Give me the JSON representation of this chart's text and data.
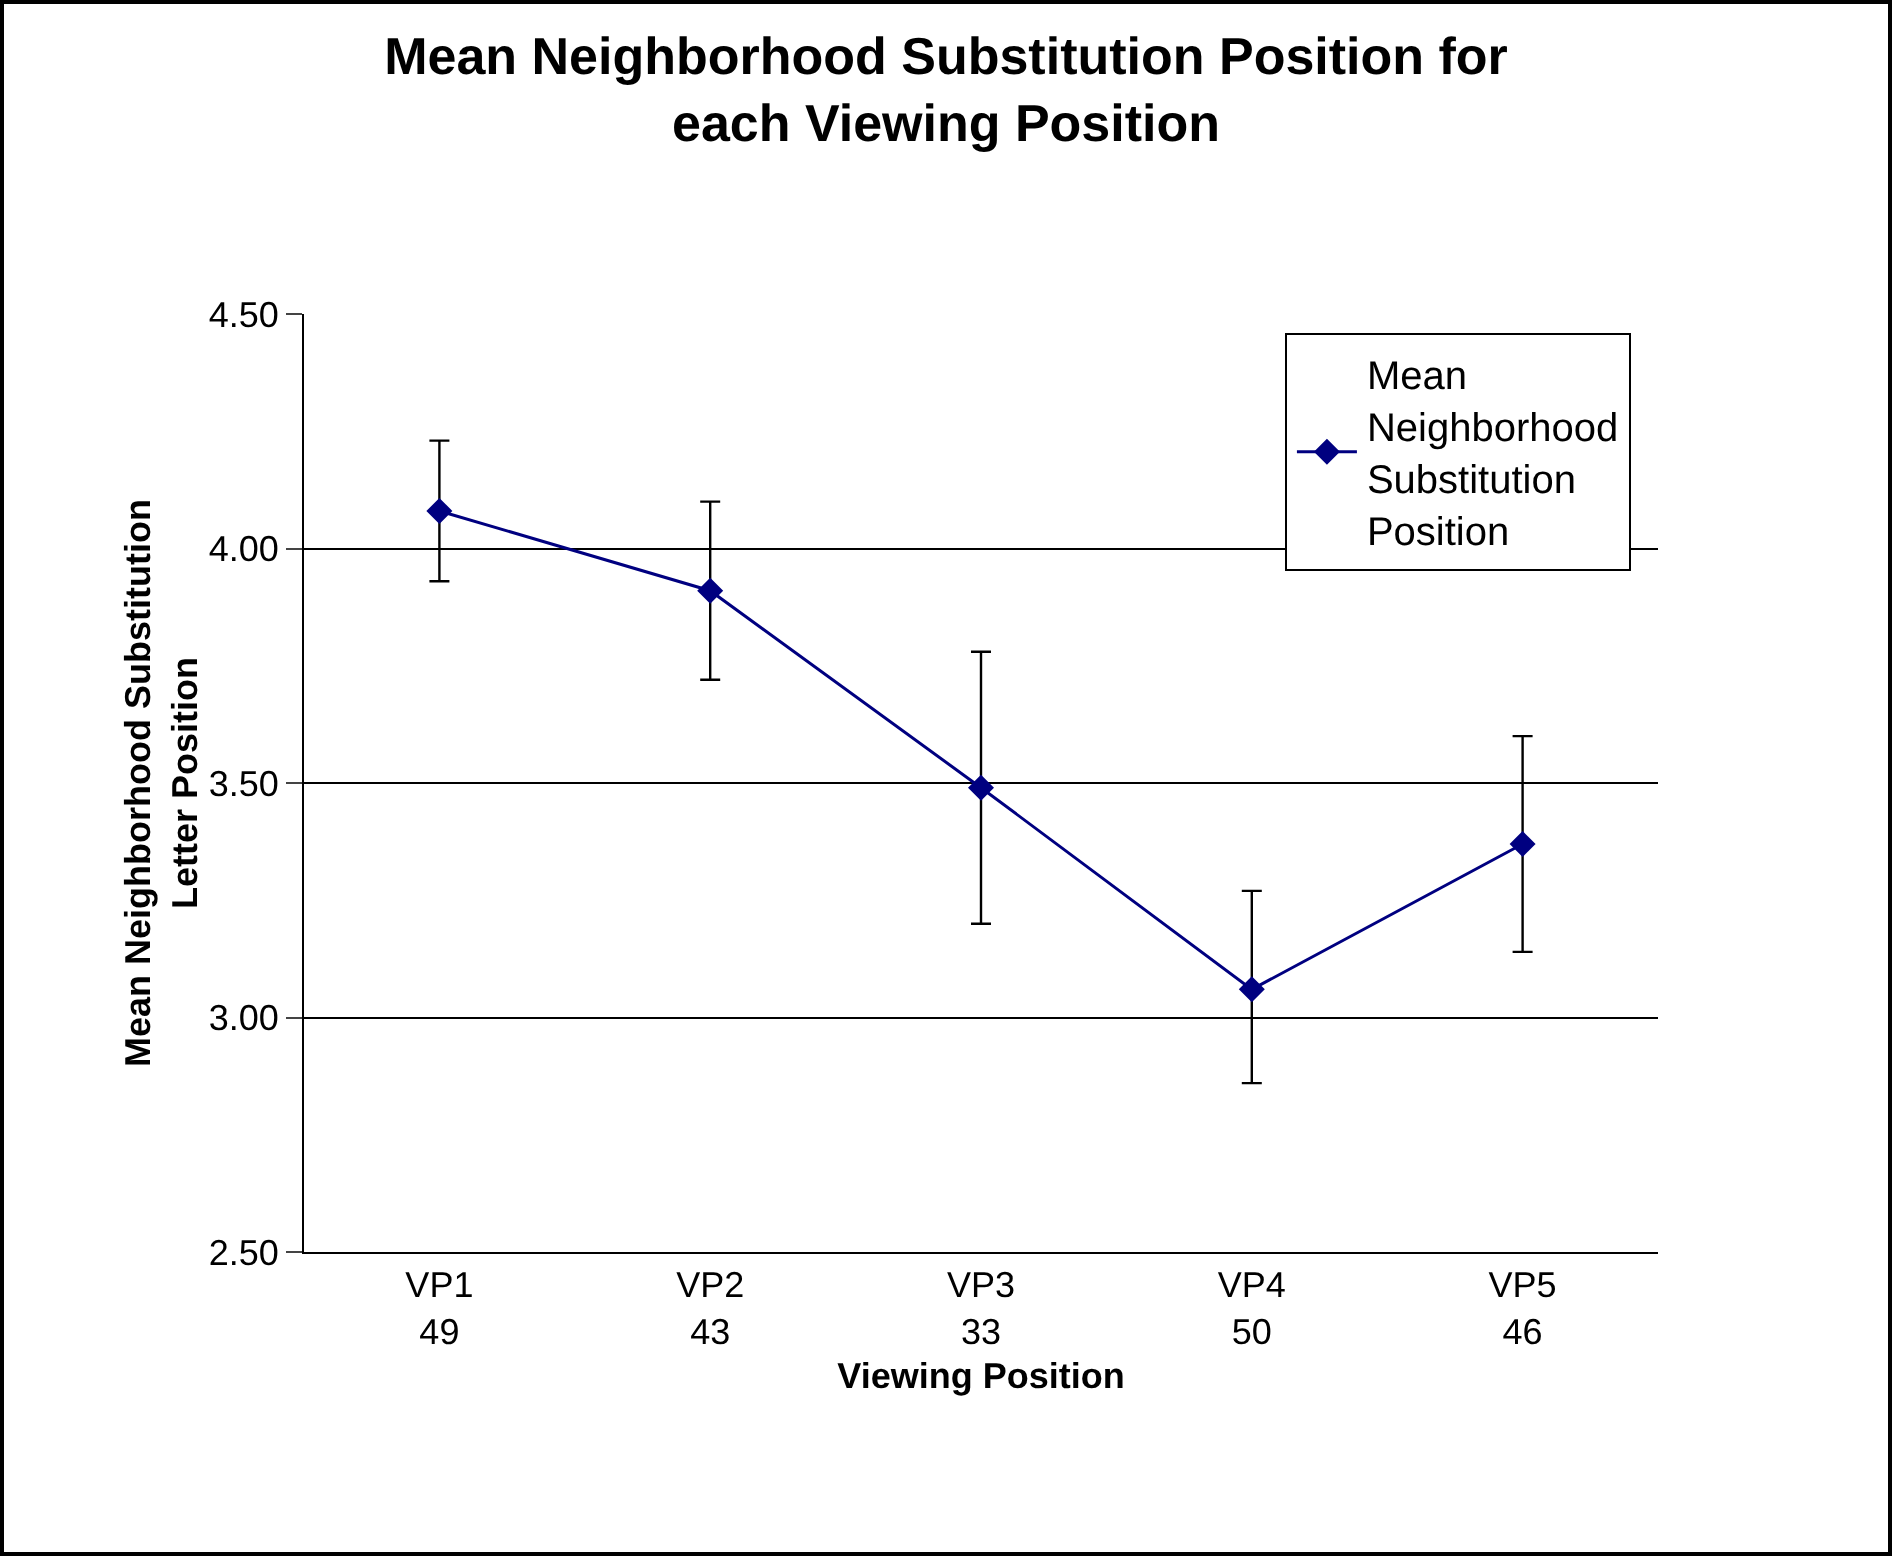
{
  "chart_data": {
    "type": "line",
    "title": "Mean Neighborhood Substitution Position for each Viewing Position",
    "xlabel": "Viewing Position",
    "ylabel": "Mean Neighborhood Substitution Letter Position",
    "categories": [
      "VP1\n49",
      "VP2\n43",
      "VP3\n33",
      "VP4\n50",
      "VP5\n46"
    ],
    "series": [
      {
        "name": "Mean Neighborhood Substitution Position",
        "color": "#000080",
        "values": [
          4.08,
          3.91,
          3.49,
          3.06,
          3.37
        ],
        "errors": [
          [
            3.93,
            4.23
          ],
          [
            3.72,
            4.1
          ],
          [
            3.2,
            3.78
          ],
          [
            2.86,
            3.27
          ],
          [
            3.14,
            3.6
          ]
        ]
      }
    ],
    "ylim": [
      2.5,
      4.5
    ],
    "yticks": [
      {
        "value": 2.5,
        "label": "2.50"
      },
      {
        "value": 3,
        "label": "3.00"
      },
      {
        "value": 3.5,
        "label": "3.50"
      },
      {
        "value": 4,
        "label": "4.00"
      },
      {
        "value": 4.5,
        "label": "4.50"
      }
    ],
    "grid": "y",
    "legend": "top right",
    "marker": "diamond",
    "line_style": "solid"
  }
}
